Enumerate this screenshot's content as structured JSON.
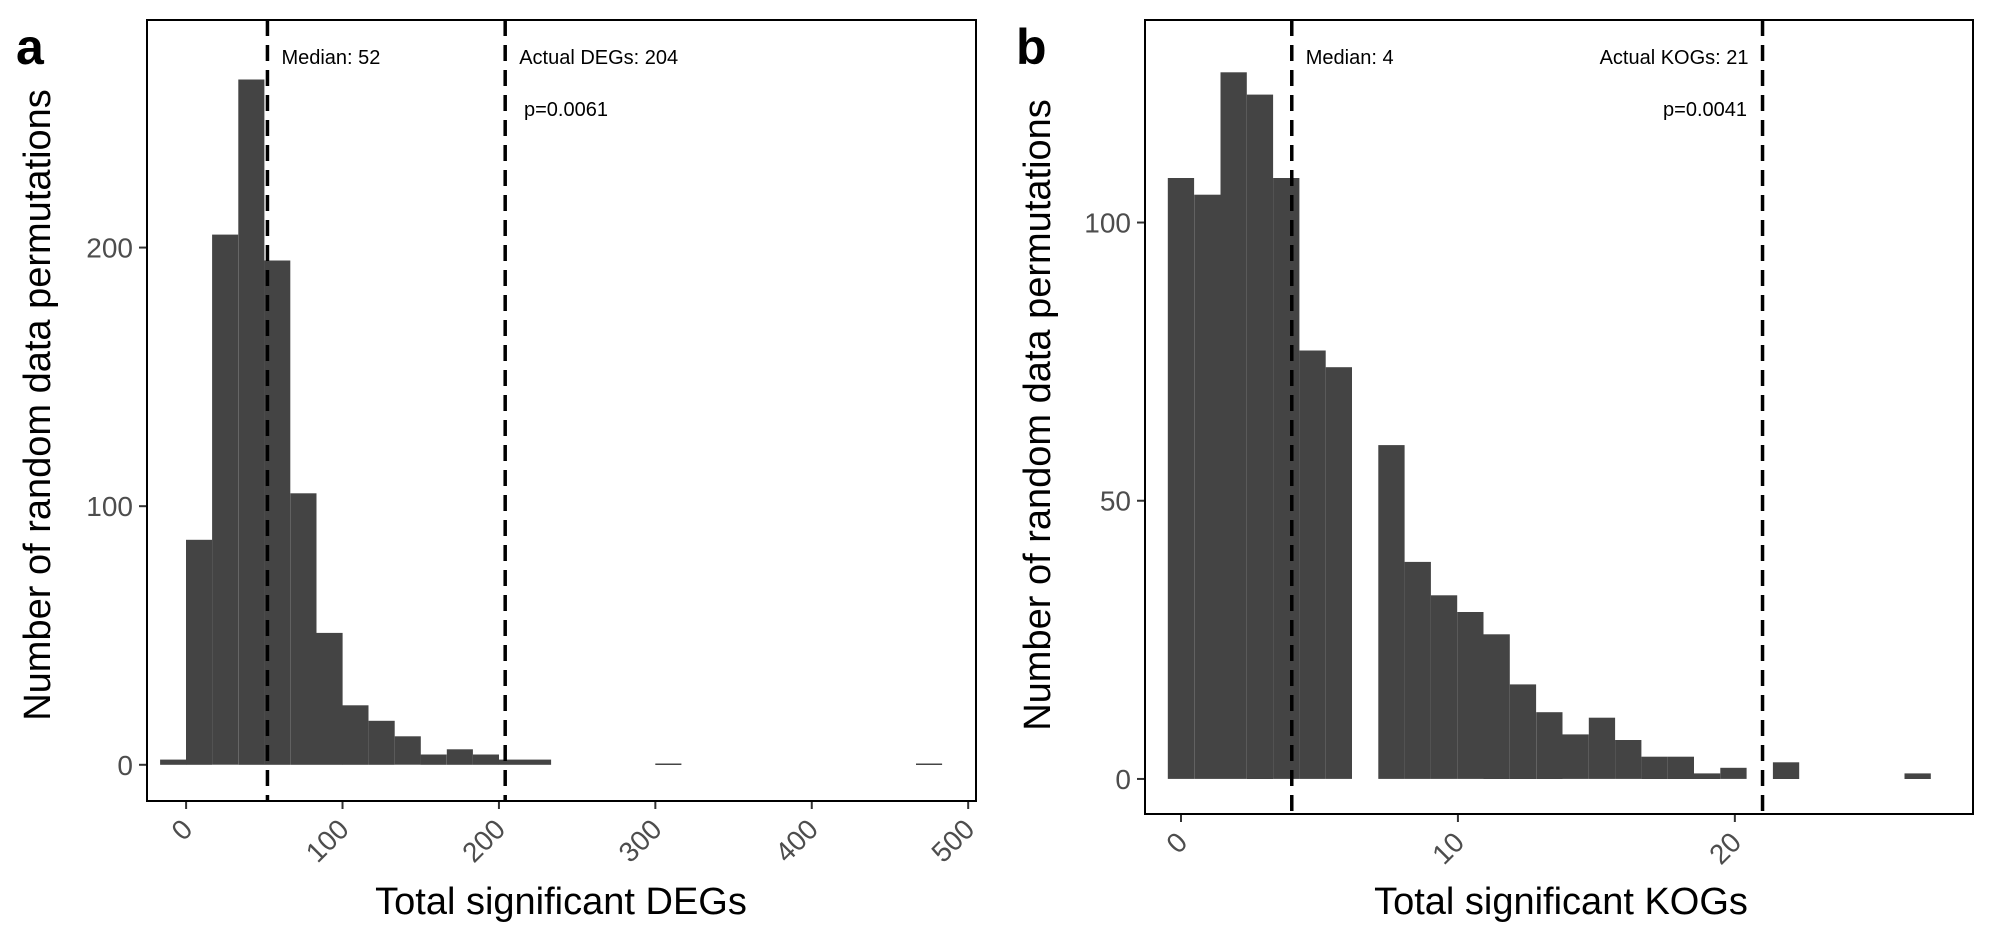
{
  "chart_data": [
    {
      "type": "bar",
      "panel_label": "a",
      "xlabel": "Total significant DEGs",
      "ylabel": "Number of random data permutations",
      "xlim": [
        -25,
        505
      ],
      "ylim": [
        -14,
        288
      ],
      "xticks": [
        0,
        100,
        200,
        300,
        400,
        500
      ],
      "yticks": [
        0,
        100,
        200
      ],
      "bin_width": 16.7,
      "bins": [
        {
          "x": -8.3,
          "count": 2
        },
        {
          "x": 8.3,
          "count": 87
        },
        {
          "x": 25,
          "count": 205
        },
        {
          "x": 41.7,
          "count": 265
        },
        {
          "x": 58.3,
          "count": 195
        },
        {
          "x": 75,
          "count": 105
        },
        {
          "x": 91.7,
          "count": 51
        },
        {
          "x": 108.3,
          "count": 23
        },
        {
          "x": 125,
          "count": 17
        },
        {
          "x": 141.7,
          "count": 11
        },
        {
          "x": 158.3,
          "count": 4
        },
        {
          "x": 175,
          "count": 6
        },
        {
          "x": 191.7,
          "count": 4
        },
        {
          "x": 208.3,
          "count": 2
        },
        {
          "x": 225,
          "count": 2
        },
        {
          "x": 308.3,
          "count": 0.5
        },
        {
          "x": 475,
          "count": 0.5
        }
      ],
      "reference_lines": [
        {
          "x": 52,
          "label": "Median: 52",
          "label_side": "right"
        },
        {
          "x": 204,
          "label": "Actual DEGs: 204",
          "label_side": "right"
        }
      ],
      "p_value": "p=0.0061",
      "grid": false
    },
    {
      "type": "bar",
      "panel_label": "b",
      "xlabel": "Total significant KOGs",
      "ylabel": "Number of random data permutations",
      "xlim": [
        -1.3,
        28.6
      ],
      "ylim": [
        -6.3,
        136.4
      ],
      "xticks": [
        0,
        10,
        20
      ],
      "yticks": [
        0,
        50,
        100
      ],
      "bin_width": 0.95,
      "bins": [
        {
          "x": 0,
          "count": 108
        },
        {
          "x": 0.95,
          "count": 105
        },
        {
          "x": 1.9,
          "count": 127
        },
        {
          "x": 2.85,
          "count": 123
        },
        {
          "x": 3.8,
          "count": 108
        },
        {
          "x": 4.75,
          "count": 77
        },
        {
          "x": 5.7,
          "count": 74
        },
        {
          "x": 7.6,
          "count": 60
        },
        {
          "x": 8.55,
          "count": 39
        },
        {
          "x": 9.5,
          "count": 33
        },
        {
          "x": 10.45,
          "count": 30
        },
        {
          "x": 11.4,
          "count": 26
        },
        {
          "x": 12.35,
          "count": 17
        },
        {
          "x": 13.3,
          "count": 12
        },
        {
          "x": 14.25,
          "count": 8
        },
        {
          "x": 15.2,
          "count": 11
        },
        {
          "x": 16.15,
          "count": 7
        },
        {
          "x": 17.1,
          "count": 4
        },
        {
          "x": 18.05,
          "count": 4
        },
        {
          "x": 19,
          "count": 1
        },
        {
          "x": 19.95,
          "count": 2
        },
        {
          "x": 21.85,
          "count": 3
        },
        {
          "x": 26.6,
          "count": 1
        }
      ],
      "reference_lines": [
        {
          "x": 4,
          "label": "Median: 4",
          "label_side": "right"
        },
        {
          "x": 21,
          "label": "Actual KOGs: 21",
          "label_side": "left"
        }
      ],
      "p_value": "p=0.0041",
      "grid": false
    }
  ]
}
